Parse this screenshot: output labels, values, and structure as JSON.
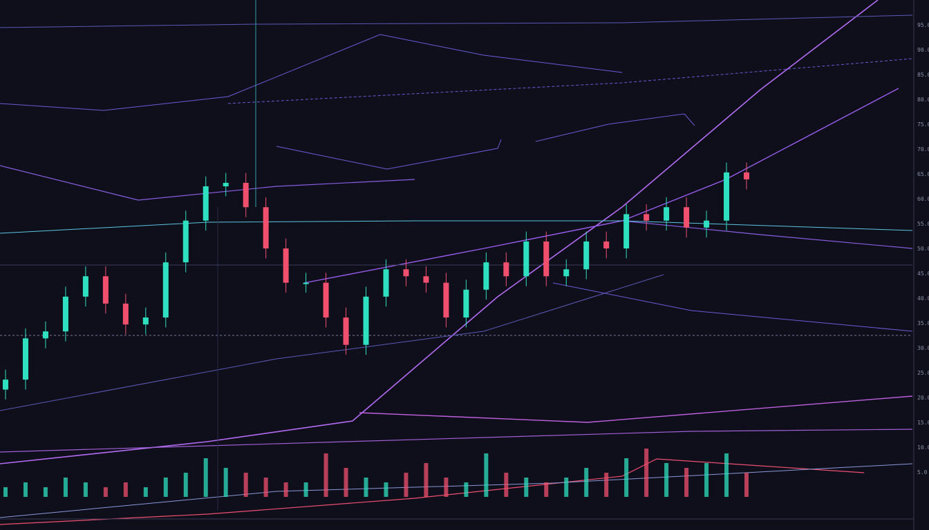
{
  "colors": {
    "background": "#0f0f1c",
    "up": "#2fe0c0",
    "down": "#f0506e",
    "overlay": "#9b5cf0",
    "overlay_alt": "#6a5cd8",
    "axis_text": "#8a8fa8",
    "highlight_label": "#2fe0a0"
  },
  "chart_data": {
    "type": "candlestick",
    "ylim": [
      0,
      100
    ],
    "grid": false,
    "legend": "none",
    "closes": [
      23.6,
      31.9,
      33.3,
      40.3,
      44.4,
      38.9,
      34.7,
      36.1,
      47.2,
      55.6,
      62.5,
      63.2,
      58.3,
      50,
      43.1,
      43.1,
      36.1,
      30.6,
      40.3,
      45.8,
      44.4,
      43.1,
      36.1,
      41.7,
      47.2,
      44.4,
      51.4,
      44.4,
      45.8,
      51.4,
      50,
      56.9,
      55.6,
      58.3,
      54.2,
      55.6,
      65.3,
      63.9
    ],
    "volumes": [
      2,
      3,
      2,
      4,
      3,
      2,
      3,
      2,
      4,
      5,
      8,
      6,
      5,
      4,
      3,
      3,
      9,
      6,
      4,
      3,
      5,
      7,
      4,
      3,
      9,
      5,
      4,
      3,
      4,
      6,
      5,
      8,
      10,
      7,
      6,
      7,
      9,
      5
    ],
    "y_tick_labels": [
      "95.0",
      "90.0",
      "85.0",
      "80.0",
      "75.0",
      "70.0",
      "65.0",
      "60.0",
      "55.0",
      "50.0",
      "45.0",
      "40.0",
      "35.0",
      "30.0",
      "25.0",
      "20.0",
      "15.0",
      "10.0",
      "5.0"
    ]
  }
}
